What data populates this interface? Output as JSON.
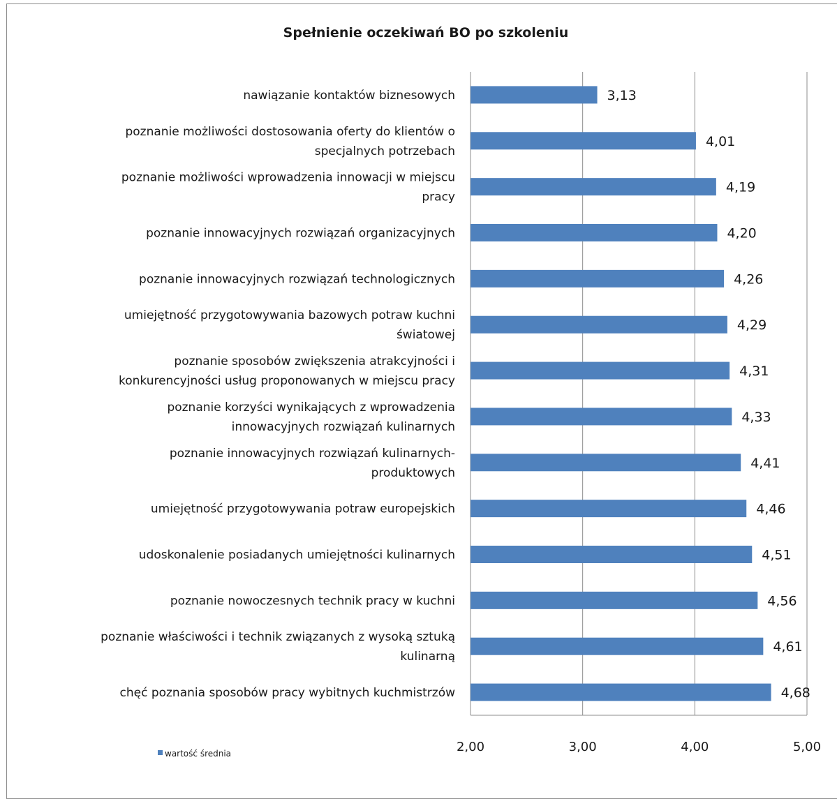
{
  "chart_data": {
    "type": "bar",
    "orientation": "horizontal",
    "title": "Spełnienie oczekiwań BO po szkoleniu",
    "categories": [
      "nawiązanie kontaktów biznesowych",
      "poznanie możliwości dostosowania oferty do klientów o specjalnych potrzebach",
      "poznanie możliwości wprowadzenia innowacji w miejscu pracy",
      "poznanie innowacyjnych rozwiązań organizacyjnych",
      "poznanie innowacyjnych rozwiązań technologicznych",
      "umiejętność przygotowywania bazowych potraw kuchni światowej",
      "poznanie sposobów zwiększenia atrakcyjności i konkurencyjności usług proponowanych w miejscu pracy",
      "poznanie korzyści wynikających z wprowadzenia innowacyjnych rozwiązań kulinarnych",
      "poznanie innowacyjnych rozwiązań kulinarnych-produktowych",
      "umiejętność przygotowywania potraw europejskich",
      "udoskonalenie posiadanych umiejętności kulinarnych",
      "poznanie nowoczesnych technik pracy w kuchni",
      "poznanie właściwości i technik związanych z wysoką sztuką kulinarną",
      "chęć poznania sposobów pracy wybitnych kuchmistrzów"
    ],
    "category_lines": [
      [
        "nawiązanie kontaktów biznesowych"
      ],
      [
        "poznanie możliwości dostosowania oferty do klientów o",
        "specjalnych potrzebach"
      ],
      [
        "poznanie możliwości wprowadzenia innowacji w miejscu",
        "pracy"
      ],
      [
        "poznanie innowacyjnych rozwiązań organizacyjnych"
      ],
      [
        "poznanie innowacyjnych rozwiązań technologicznych"
      ],
      [
        "umiejętność przygotowywania bazowych potraw kuchni",
        "światowej"
      ],
      [
        "poznanie sposobów zwiększenia atrakcyjności i",
        "konkurencyjności usług proponowanych w miejscu pracy"
      ],
      [
        "poznanie korzyści wynikających z wprowadzenia",
        "innowacyjnych rozwiązań kulinarnych"
      ],
      [
        "poznanie innowacyjnych rozwiązań kulinarnych-",
        "produktowych"
      ],
      [
        "umiejętność przygotowywania potraw europejskich"
      ],
      [
        "udoskonalenie posiadanych umiejętności kulinarnych"
      ],
      [
        "poznanie nowoczesnych technik pracy w kuchni"
      ],
      [
        "poznanie właściwości i technik związanych z wysoką sztuką",
        "kulinarną"
      ],
      [
        "chęć poznania sposobów pracy wybitnych kuchmistrzów"
      ]
    ],
    "series": [
      {
        "name": "wartość średnia",
        "values": [
          3.13,
          4.01,
          4.19,
          4.2,
          4.26,
          4.29,
          4.31,
          4.33,
          4.41,
          4.46,
          4.51,
          4.56,
          4.61,
          4.68
        ],
        "value_labels": [
          "3,13",
          "4,01",
          "4,19",
          "4,20",
          "4,26",
          "4,29",
          "4,31",
          "4,33",
          "4,41",
          "4,46",
          "4,51",
          "4,56",
          "4,61",
          "4,68"
        ]
      }
    ],
    "xlim": [
      2,
      5
    ],
    "x_ticks": [
      2,
      3,
      4,
      5
    ],
    "x_tick_labels": [
      "2,00",
      "3,00",
      "4,00",
      "5,00"
    ],
    "grid": "vertical",
    "legend": "bottom-left",
    "colors": {
      "bar": "#4f81bd",
      "grid": "#8c8c8c"
    }
  }
}
